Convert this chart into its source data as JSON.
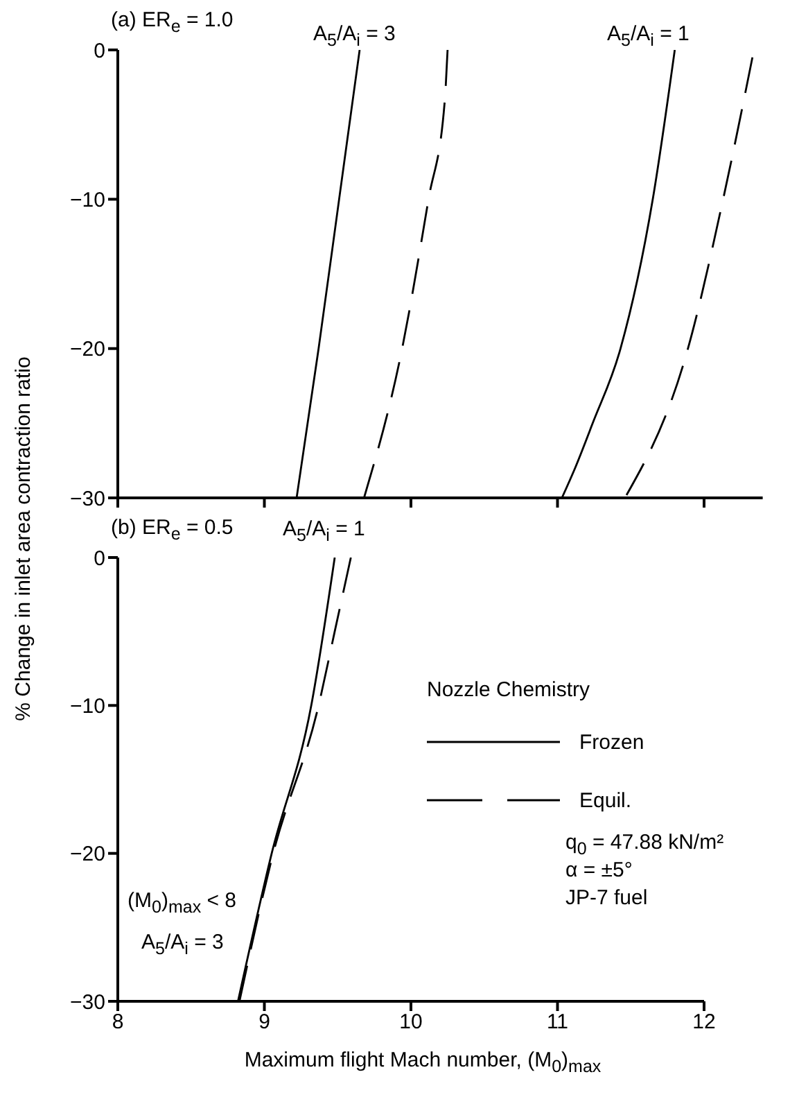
{
  "chart_data": [
    {
      "type": "line",
      "title": "(a) ER$_{e}$ = 1.0",
      "xlim": [
        8,
        12.4
      ],
      "xticks": [
        8,
        9,
        10,
        11,
        12
      ],
      "ylim": [
        -30,
        0
      ],
      "yticks": [
        0,
        -10,
        -20,
        -30
      ],
      "tick_labels": "y",
      "marker": "none",
      "legend": false,
      "annotations": [
        "A$_{5}$/A$_{i}$ = 3",
        "A$_{5}$/A$_{i}$ = 1"
      ],
      "series": [
        {
          "color": "#000000",
          "line_style": "solid",
          "x": [
            9.65,
            9.51,
            9.37,
            9.22
          ],
          "values": [
            0,
            -10,
            -20,
            -30
          ]
        },
        {
          "color": "#000000",
          "line_style": "dashed",
          "x": [
            10.25,
            10.23,
            10.12,
            9.94,
            9.68
          ],
          "values": [
            0,
            -3.5,
            -10,
            -20,
            -30
          ]
        },
        {
          "color": "#000000",
          "line_style": "solid",
          "x": [
            11.8,
            11.65,
            11.43,
            11.24,
            11.12,
            11.03
          ],
          "values": [
            0,
            -10,
            -20,
            -25,
            -28,
            -30
          ]
        },
        {
          "color": "#000000",
          "line_style": "dashed",
          "x": [
            12.33,
            12.13,
            11.89,
            11.46
          ],
          "values": [
            -0.5,
            -10,
            -20,
            -30
          ]
        }
      ]
    },
    {
      "type": "line",
      "title": "(b) ER$_{e}$ = 0.5",
      "xlabel": "Maximum flight Mach number, (M$_{0}$)$_{max}$",
      "ylabel": "% Change in inlet area contraction ratio",
      "legend_title": "Nozzle Chemistry",
      "xlim": [
        8,
        12
      ],
      "xticks": [
        8,
        9,
        10,
        11,
        12
      ],
      "ylim": [
        -30,
        0
      ],
      "yticks": [
        0,
        -10,
        -20,
        -30
      ],
      "marker": "none",
      "legend": "right",
      "annotations": [
        "A$_{5}$/A$_{i}$ = 1",
        "(M$_{0}$)$_{max}$ < 8",
        "A$_{5}$/A$_{i}$ = 3",
        "q$_{0}$ = 47.88 kN/m²",
        "α = ±5°",
        "JP-7 fuel"
      ],
      "series": [
        {
          "name": "Frozen",
          "color": "#000000",
          "line_style": "solid",
          "x": [
            9.48,
            9.32,
            9.05,
            8.82
          ],
          "values": [
            0,
            -10,
            -20,
            -30
          ]
        },
        {
          "name": "Equil.",
          "color": "#000000",
          "line_style": "dashed",
          "x": [
            9.59,
            9.48,
            9.37,
            9.06,
            8.83
          ],
          "values": [
            0,
            -5,
            -10,
            -20,
            -30
          ]
        }
      ]
    }
  ]
}
